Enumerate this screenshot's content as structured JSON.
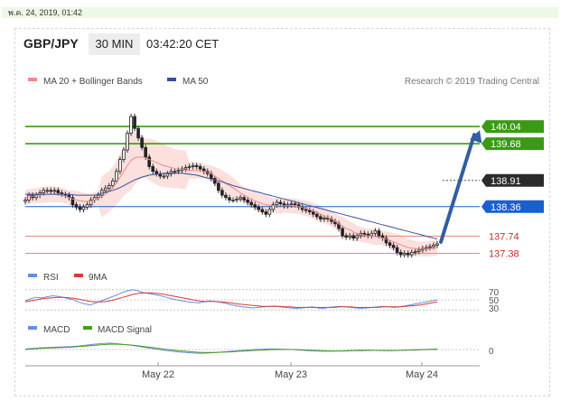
{
  "datetime": "พ.ค. 24, 2019, 01:42",
  "header": {
    "symbol": "GBP/JPY",
    "timeframe": "30 MIN",
    "time": "03:42:20 CET"
  },
  "legend": {
    "ma20": "MA 20 + Bollinger Bands",
    "ma50": "MA 50",
    "credit": "Research © 2019 Trading Central"
  },
  "colors": {
    "resistance": "#3a9a14",
    "support": "#1a5fd0",
    "weak_level": "#e08a8a",
    "price_tag": "#2b2b2b",
    "ma20": "#f08a8a",
    "ma50": "#3a4f9a",
    "bollinger_fill": "#fadbd8",
    "arrow": "#2f5f9e",
    "rsi": "#6a8fd8",
    "nine_ma": "#d83a3a",
    "macd": "#6a8fd8",
    "macd_signal": "#4a9a20"
  },
  "chart_data": [
    {
      "type": "candlestick",
      "title": "GBP/JPY 30 MIN",
      "x_ticks": [
        "May 22",
        "May 23",
        "May 24"
      ],
      "ylim": [
        137.2,
        140.8
      ],
      "close": [
        138.5,
        138.6,
        138.55,
        138.6,
        138.65,
        138.7,
        138.7,
        138.68,
        138.7,
        138.65,
        138.62,
        138.6,
        138.55,
        138.4,
        138.35,
        138.3,
        138.35,
        138.4,
        138.5,
        138.55,
        138.6,
        138.7,
        138.75,
        138.8,
        138.9,
        139.1,
        139.35,
        139.55,
        139.9,
        140.25,
        140.0,
        139.8,
        139.6,
        139.4,
        139.2,
        139.1,
        139.05,
        139.0,
        139.0,
        139.05,
        139.1,
        139.1,
        139.12,
        139.15,
        139.18,
        139.2,
        139.22,
        139.2,
        139.15,
        139.1,
        139.05,
        138.95,
        138.85,
        138.7,
        138.6,
        138.55,
        138.5,
        138.5,
        138.52,
        138.55,
        138.5,
        138.45,
        138.4,
        138.35,
        138.3,
        138.25,
        138.2,
        138.3,
        138.4,
        138.45,
        138.42,
        138.38,
        138.4,
        138.42,
        138.4,
        138.35,
        138.3,
        138.28,
        138.25,
        138.2,
        138.15,
        138.1,
        138.12,
        138.1,
        138.05,
        138.0,
        137.9,
        137.75,
        137.72,
        137.75,
        137.7,
        137.75,
        137.8,
        137.78,
        137.75,
        137.8,
        137.85,
        137.75,
        137.7,
        137.6,
        137.55,
        137.5,
        137.4,
        137.35,
        137.38,
        137.35,
        137.4,
        137.42,
        137.45,
        137.48,
        137.5,
        137.52,
        137.55,
        137.58
      ],
      "ma20": [
        138.55,
        138.57,
        138.58,
        138.59,
        138.6,
        138.61,
        138.62,
        138.62,
        138.62,
        138.61,
        138.6,
        138.58,
        138.55,
        138.52,
        138.5,
        138.48,
        138.47,
        138.47,
        138.48,
        138.5,
        138.53,
        138.57,
        138.62,
        138.68,
        138.76,
        138.86,
        138.98,
        139.1,
        139.22,
        139.33,
        139.38,
        139.4,
        139.4,
        139.38,
        139.35,
        139.32,
        139.28,
        139.25,
        139.22,
        139.2,
        139.18,
        139.16,
        139.15,
        139.14,
        139.13,
        139.12,
        139.12,
        139.12,
        139.11,
        139.1,
        139.08,
        139.05,
        139.0,
        138.95,
        138.9,
        138.85,
        138.8,
        138.75,
        138.7,
        138.65,
        138.6,
        138.56,
        138.52,
        138.48,
        138.45,
        138.42,
        138.4,
        138.39,
        138.38,
        138.38,
        138.38,
        138.38,
        138.38,
        138.38,
        138.37,
        138.36,
        138.34,
        138.32,
        138.3,
        138.27,
        138.24,
        138.2,
        138.17,
        138.13,
        138.1,
        138.05,
        138.0,
        137.95,
        137.9,
        137.87,
        137.83,
        137.8,
        137.78,
        137.76,
        137.75,
        137.74,
        137.73,
        137.72,
        137.7,
        137.68,
        137.65,
        137.62,
        137.59,
        137.56,
        137.53,
        137.5,
        137.49,
        137.48,
        137.47,
        137.47,
        137.47,
        137.48,
        137.49,
        137.5
      ],
      "ma50": [
        138.62,
        138.62,
        138.62,
        138.62,
        138.62,
        138.62,
        138.62,
        138.62,
        138.62,
        138.62,
        138.62,
        138.62,
        138.62,
        138.61,
        138.6,
        138.6,
        138.6,
        138.6,
        138.6,
        138.6,
        138.62,
        138.64,
        138.66,
        138.68,
        138.7,
        138.73,
        138.76,
        138.8,
        138.84,
        138.88,
        138.92,
        138.95,
        138.98,
        139.0,
        139.02,
        139.03,
        139.04,
        139.05,
        139.06,
        139.06,
        139.06,
        139.06,
        139.06,
        139.06,
        139.05,
        139.04,
        139.03,
        139.02,
        139.0,
        138.98,
        138.96,
        138.94,
        138.92,
        138.9,
        138.88,
        138.85,
        138.83,
        138.8,
        138.78,
        138.76,
        138.74,
        138.72,
        138.7,
        138.68,
        138.66,
        138.64,
        138.62,
        138.6,
        138.58,
        138.56,
        138.54,
        138.52,
        138.5,
        138.48,
        138.46,
        138.44,
        138.42,
        138.4,
        138.38,
        138.36,
        138.34,
        138.32,
        138.3,
        138.28,
        138.26,
        138.24,
        138.22,
        138.2,
        138.18,
        138.16,
        138.14,
        138.12,
        138.1,
        138.08,
        138.06,
        138.04,
        138.02,
        138.0,
        137.98,
        137.96,
        137.94,
        137.92,
        137.9,
        137.88,
        137.86,
        137.84,
        137.82,
        137.8,
        137.78,
        137.76,
        137.74,
        137.72,
        137.7,
        137.68
      ],
      "levels": [
        {
          "value": 140.04,
          "label": "140.04",
          "kind": "resistance"
        },
        {
          "value": 139.68,
          "label": "139.68",
          "kind": "resistance"
        },
        {
          "value": 138.91,
          "label": "138.91",
          "kind": "price"
        },
        {
          "value": 138.36,
          "label": "138.36",
          "kind": "support"
        },
        {
          "value": 137.74,
          "label": "137.74",
          "kind": "weak"
        },
        {
          "value": 137.38,
          "label": "137.38",
          "kind": "weak"
        }
      ],
      "forecast_target": 140.04
    },
    {
      "type": "line",
      "series_labels": [
        "RSI",
        "9MA"
      ],
      "tick_labels": [
        "70",
        "50",
        "30"
      ],
      "ylim": [
        25,
        75
      ],
      "rsi": [
        48,
        52,
        55,
        54,
        56,
        58,
        57,
        55,
        52,
        50,
        45,
        42,
        40,
        44,
        48,
        52,
        56,
        60,
        65,
        68,
        70,
        67,
        64,
        62,
        60,
        58,
        55,
        52,
        50,
        48,
        46,
        45,
        44,
        46,
        48,
        47,
        45,
        43,
        40,
        38,
        36,
        35,
        34,
        35,
        36,
        37,
        38,
        36,
        35,
        34,
        33,
        34,
        35,
        36,
        34,
        33,
        35,
        36,
        37,
        36,
        35,
        34,
        33,
        34,
        35,
        36,
        37,
        36,
        35,
        36,
        38,
        40,
        42,
        44,
        46,
        48,
        50
      ],
      "ma9": [
        46,
        48,
        50,
        52,
        53,
        54,
        55,
        55,
        54,
        53,
        51,
        49,
        47,
        46,
        46,
        47,
        49,
        52,
        55,
        58,
        61,
        63,
        64,
        64,
        63,
        62,
        60,
        58,
        56,
        54,
        52,
        50,
        48,
        47,
        47,
        47,
        46,
        45,
        44,
        42,
        41,
        40,
        39,
        38,
        37,
        37,
        37,
        37,
        36,
        36,
        35,
        35,
        35,
        35,
        35,
        35,
        35,
        35,
        36,
        36,
        36,
        35,
        35,
        35,
        35,
        35,
        36,
        36,
        36,
        36,
        37,
        38,
        39,
        40,
        42,
        44,
        46
      ]
    },
    {
      "type": "line",
      "series_labels": [
        "MACD",
        "MACD Signal"
      ],
      "tick_labels": [
        "0"
      ],
      "ylim": [
        -0.4,
        0.4
      ],
      "macd": [
        0.02,
        0.04,
        0.06,
        0.07,
        0.08,
        0.09,
        0.1,
        0.12,
        0.15,
        0.18,
        0.2,
        0.22,
        0.2,
        0.17,
        0.14,
        0.1,
        0.06,
        0.02,
        -0.02,
        -0.05,
        -0.08,
        -0.1,
        -0.12,
        -0.13,
        -0.12,
        -0.1,
        -0.08,
        -0.06,
        -0.04,
        -0.02,
        0.0,
        0.01,
        0.02,
        0.02,
        0.01,
        0.0,
        -0.02,
        -0.04,
        -0.05,
        -0.06,
        -0.06,
        -0.05,
        -0.04,
        -0.03,
        -0.02,
        -0.02,
        -0.03,
        -0.04,
        -0.04,
        -0.03,
        -0.02,
        -0.01,
        0.0,
        0.01,
        0.02
      ],
      "signal": [
        0.0,
        0.02,
        0.04,
        0.05,
        0.06,
        0.07,
        0.08,
        0.1,
        0.12,
        0.14,
        0.16,
        0.18,
        0.18,
        0.17,
        0.15,
        0.12,
        0.09,
        0.06,
        0.02,
        -0.01,
        -0.04,
        -0.06,
        -0.08,
        -0.1,
        -0.1,
        -0.1,
        -0.09,
        -0.08,
        -0.06,
        -0.05,
        -0.03,
        -0.02,
        -0.01,
        0.0,
        0.0,
        0.0,
        -0.01,
        -0.02,
        -0.03,
        -0.04,
        -0.05,
        -0.05,
        -0.05,
        -0.04,
        -0.04,
        -0.03,
        -0.03,
        -0.03,
        -0.03,
        -0.03,
        -0.02,
        -0.02,
        -0.01,
        0.0,
        0.0
      ]
    }
  ]
}
